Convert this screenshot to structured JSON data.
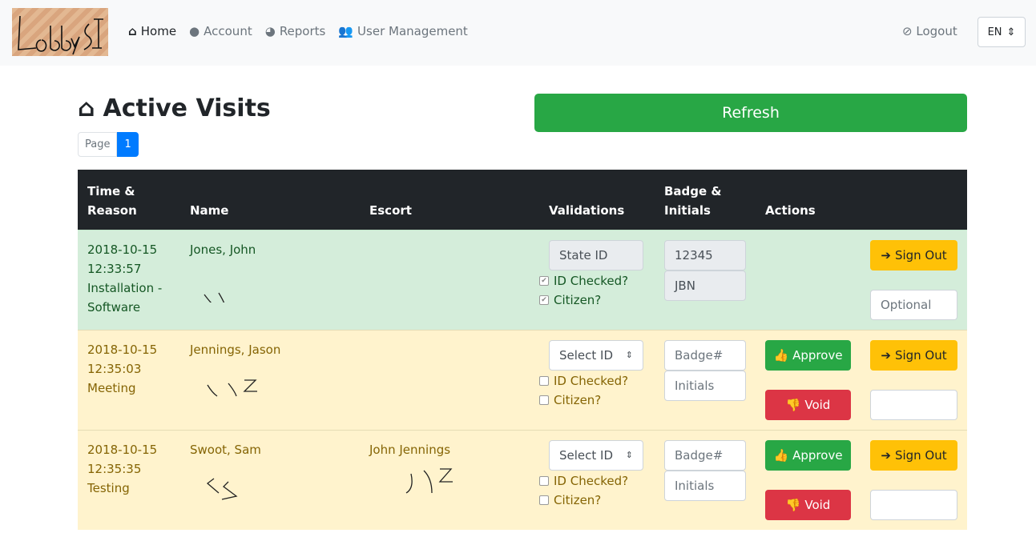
{
  "nav": {
    "logo_text": "LobbyIO",
    "items": [
      {
        "label": "Home",
        "icon": "home-icon"
      },
      {
        "label": "Account",
        "icon": "user-circle-icon"
      },
      {
        "label": "Reports",
        "icon": "pie-chart-icon"
      },
      {
        "label": "User Management",
        "icon": "users-icon"
      }
    ],
    "logout": "Logout",
    "language": "EN"
  },
  "page": {
    "title": "Active Visits",
    "refresh": "Refresh",
    "pager_label": "Page",
    "current_page": "1"
  },
  "table": {
    "headers": [
      "Time &\nReason",
      "Name",
      "Escort",
      "Validations",
      "Badge &\nInitials",
      "Actions",
      ""
    ],
    "labels": {
      "id_checked": "ID Checked?",
      "citizen": "Citizen?",
      "approve": "Approve",
      "void": "Void",
      "sign_out": "Sign Out",
      "badge_placeholder": "Badge#",
      "initials_placeholder": "Initials",
      "select_placeholder": "Select ID",
      "optional_placeholder": "Optional"
    },
    "rows": [
      {
        "date": "2018-10-15",
        "time": "12:33:57",
        "reason": "Installation - Software",
        "name": "Jones, John",
        "escort": "",
        "id_type": "State ID",
        "badge": "12345",
        "initials": "JBN",
        "id_checked": true,
        "citizen": true,
        "status": "approved"
      },
      {
        "date": "2018-10-15",
        "time": "12:35:03",
        "reason": "Meeting",
        "name": "Jennings, Jason",
        "escort": "",
        "id_type": "",
        "badge": "",
        "initials": "",
        "id_checked": false,
        "citizen": false,
        "status": "pending"
      },
      {
        "date": "2018-10-15",
        "time": "12:35:35",
        "reason": "Testing",
        "name": "Swoot, Sam",
        "escort": "John Jennings",
        "id_type": "",
        "badge": "",
        "initials": "",
        "id_checked": false,
        "citizen": false,
        "status": "pending"
      }
    ]
  },
  "colors": {
    "approved_row": "#d4edda",
    "pending_row": "#fff3cd",
    "primary": "#007bff",
    "success": "#28a745",
    "danger": "#dc3545",
    "warning": "#ffc107"
  }
}
